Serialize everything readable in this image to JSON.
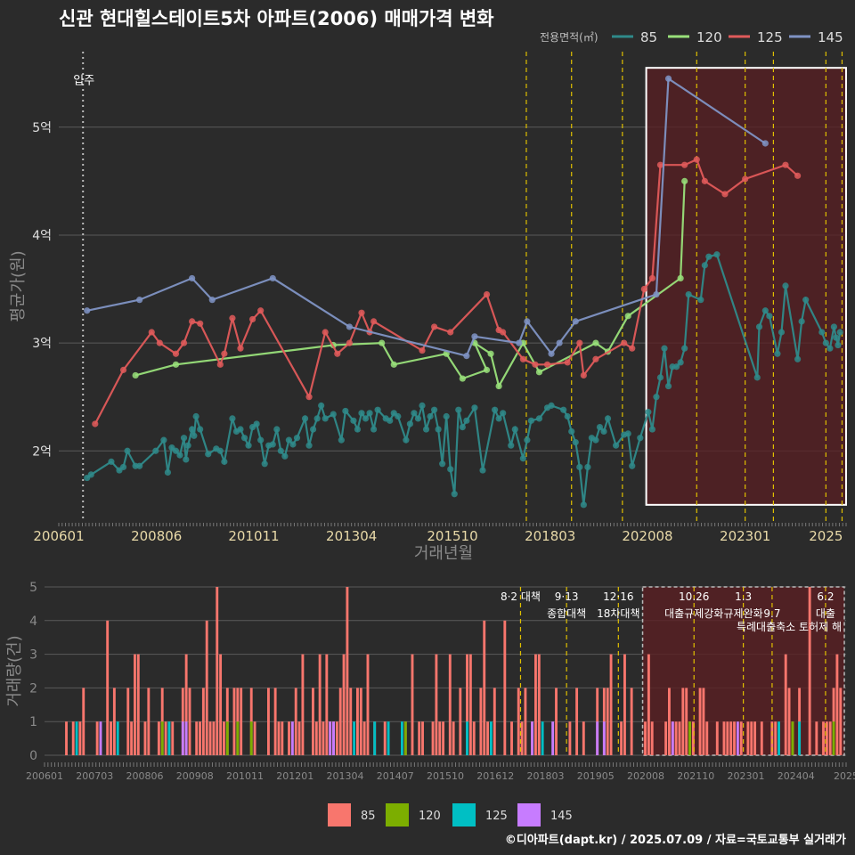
{
  "title": "신관 현대힐스테이트5차 아파트(2006) 매매가격 변화",
  "legend_title": "전용면적(㎡)",
  "copyright": "©디아파트(dapt.kr) / 2025.07.09 / 자료=국토교통부 실거래가",
  "colors": {
    "background": "#2b2b2b",
    "85": "#2f8a8a",
    "120": "#99e07a",
    "125": "#e05a5a",
    "145": "#7f93c4",
    "bar85": "#f8766d",
    "bar120": "#7cae00",
    "bar125": "#00bfc4",
    "bar145": "#c77cff",
    "policy_line": "#e0c000",
    "move_in_line": "#bbbbbb",
    "highlight_fill": "#5a1f23"
  },
  "chart_data": [
    {
      "type": "line",
      "name": "price",
      "xlabel": "거래년월",
      "ylabel": "평균가(원)",
      "x_range": [
        2006.0,
        2025.5
      ],
      "y_range": [
        1.35,
        5.7
      ],
      "y_ticks": [
        {
          "v": 2,
          "label": "2억"
        },
        {
          "v": 3,
          "label": "3억"
        },
        {
          "v": 4,
          "label": "4억"
        },
        {
          "v": 5,
          "label": "5억"
        }
      ],
      "x_ticks": [
        {
          "v": 2006.0,
          "label": "200601"
        },
        {
          "v": 2008.42,
          "label": "200806"
        },
        {
          "v": 2010.83,
          "label": "201011"
        },
        {
          "v": 2013.25,
          "label": "201304"
        },
        {
          "v": 2015.75,
          "label": "201510"
        },
        {
          "v": 2018.17,
          "label": "201803"
        },
        {
          "v": 2020.58,
          "label": "202008"
        },
        {
          "v": 2023.0,
          "label": "202301"
        },
        {
          "v": 2025.0,
          "label": "2025"
        }
      ],
      "move_in": {
        "x": 2006.6,
        "label": "입주"
      },
      "policy_lines": [
        2017.58,
        2018.7,
        2019.96,
        2021.8,
        2023.0,
        2023.7,
        2025.0,
        2025.4
      ],
      "highlight_box": {
        "x0": 2020.55,
        "x1": 2025.5,
        "y0": 1.5,
        "y1": 5.55
      },
      "series": [
        {
          "name": "85",
          "color_key": "85",
          "values": [
            [
              2006.7,
              1.75
            ],
            [
              2006.8,
              1.78
            ],
            [
              2007.3,
              1.9
            ],
            [
              2007.5,
              1.82
            ],
            [
              2007.6,
              1.85
            ],
            [
              2007.7,
              2.0
            ],
            [
              2007.9,
              1.86
            ],
            [
              2008.0,
              1.86
            ],
            [
              2008.4,
              2.0
            ],
            [
              2008.6,
              2.1
            ],
            [
              2008.7,
              1.8
            ],
            [
              2008.8,
              2.03
            ],
            [
              2008.9,
              2.0
            ],
            [
              2009.0,
              1.96
            ],
            [
              2009.1,
              2.12
            ],
            [
              2009.15,
              1.92
            ],
            [
              2009.2,
              2.05
            ],
            [
              2009.3,
              2.2
            ],
            [
              2009.35,
              2.14
            ],
            [
              2009.4,
              2.32
            ],
            [
              2009.5,
              2.2
            ],
            [
              2009.7,
              1.97
            ],
            [
              2009.9,
              2.02
            ],
            [
              2010.0,
              2.0
            ],
            [
              2010.1,
              1.9
            ],
            [
              2010.3,
              2.3
            ],
            [
              2010.4,
              2.18
            ],
            [
              2010.5,
              2.2
            ],
            [
              2010.6,
              2.12
            ],
            [
              2010.7,
              2.05
            ],
            [
              2010.8,
              2.22
            ],
            [
              2010.9,
              2.25
            ],
            [
              2011.0,
              2.1
            ],
            [
              2011.1,
              1.88
            ],
            [
              2011.2,
              2.05
            ],
            [
              2011.3,
              2.06
            ],
            [
              2011.4,
              2.2
            ],
            [
              2011.5,
              2.0
            ],
            [
              2011.6,
              1.95
            ],
            [
              2011.7,
              2.1
            ],
            [
              2011.8,
              2.06
            ],
            [
              2011.9,
              2.12
            ],
            [
              2012.1,
              2.3
            ],
            [
              2012.2,
              2.05
            ],
            [
              2012.3,
              2.2
            ],
            [
              2012.4,
              2.3
            ],
            [
              2012.5,
              2.42
            ],
            [
              2012.6,
              2.3
            ],
            [
              2012.8,
              2.34
            ],
            [
              2013.0,
              2.1
            ],
            [
              2013.1,
              2.37
            ],
            [
              2013.3,
              2.28
            ],
            [
              2013.4,
              2.2
            ],
            [
              2013.5,
              2.35
            ],
            [
              2013.6,
              2.3
            ],
            [
              2013.7,
              2.35
            ],
            [
              2013.8,
              2.2
            ],
            [
              2013.9,
              2.38
            ],
            [
              2014.1,
              2.3
            ],
            [
              2014.2,
              2.28
            ],
            [
              2014.3,
              2.35
            ],
            [
              2014.4,
              2.32
            ],
            [
              2014.6,
              2.1
            ],
            [
              2014.7,
              2.25
            ],
            [
              2014.8,
              2.35
            ],
            [
              2014.9,
              2.3
            ],
            [
              2015.0,
              2.42
            ],
            [
              2015.1,
              2.2
            ],
            [
              2015.2,
              2.32
            ],
            [
              2015.3,
              2.38
            ],
            [
              2015.4,
              2.2
            ],
            [
              2015.5,
              1.88
            ],
            [
              2015.6,
              2.32
            ],
            [
              2015.7,
              1.83
            ],
            [
              2015.8,
              1.6
            ],
            [
              2015.9,
              2.38
            ],
            [
              2016.0,
              2.22
            ],
            [
              2016.1,
              2.28
            ],
            [
              2016.3,
              2.4
            ],
            [
              2016.5,
              1.82
            ],
            [
              2016.8,
              2.38
            ],
            [
              2016.9,
              2.3
            ],
            [
              2017.0,
              2.35
            ],
            [
              2017.2,
              2.05
            ],
            [
              2017.3,
              2.2
            ],
            [
              2017.5,
              1.93
            ],
            [
              2017.6,
              2.1
            ],
            [
              2017.7,
              2.28
            ],
            [
              2017.9,
              2.3
            ],
            [
              2018.1,
              2.4
            ],
            [
              2018.2,
              2.42
            ],
            [
              2018.5,
              2.38
            ],
            [
              2018.6,
              2.32
            ],
            [
              2018.7,
              2.18
            ],
            [
              2018.8,
              2.08
            ],
            [
              2018.9,
              1.85
            ],
            [
              2019.0,
              1.5
            ],
            [
              2019.1,
              1.85
            ],
            [
              2019.2,
              2.12
            ],
            [
              2019.3,
              2.1
            ],
            [
              2019.4,
              2.22
            ],
            [
              2019.5,
              2.18
            ],
            [
              2019.6,
              2.3
            ],
            [
              2019.8,
              2.05
            ],
            [
              2020.0,
              2.15
            ],
            [
              2020.1,
              2.16
            ],
            [
              2020.2,
              1.86
            ],
            [
              2020.4,
              2.12
            ],
            [
              2020.6,
              2.36
            ],
            [
              2020.7,
              2.2
            ],
            [
              2020.8,
              2.5
            ],
            [
              2020.9,
              2.68
            ],
            [
              2021.0,
              2.95
            ],
            [
              2021.1,
              2.6
            ],
            [
              2021.2,
              2.78
            ],
            [
              2021.3,
              2.78
            ],
            [
              2021.4,
              2.82
            ],
            [
              2021.5,
              2.95
            ],
            [
              2021.6,
              3.45
            ],
            [
              2021.9,
              3.4
            ],
            [
              2022.0,
              3.72
            ],
            [
              2022.1,
              3.8
            ],
            [
              2022.3,
              3.82
            ],
            [
              2023.3,
              2.68
            ],
            [
              2023.35,
              3.15
            ],
            [
              2023.5,
              3.3
            ],
            [
              2023.6,
              3.25
            ],
            [
              2023.8,
              2.9
            ],
            [
              2023.9,
              3.1
            ],
            [
              2024.0,
              3.53
            ],
            [
              2024.3,
              2.85
            ],
            [
              2024.4,
              3.2
            ],
            [
              2024.5,
              3.4
            ],
            [
              2024.9,
              3.1
            ],
            [
              2025.0,
              3.0
            ],
            [
              2025.1,
              2.95
            ],
            [
              2025.2,
              3.15
            ],
            [
              2025.25,
              3.05
            ],
            [
              2025.3,
              2.98
            ],
            [
              2025.35,
              3.1
            ]
          ]
        },
        {
          "name": "120",
          "color_key": "120",
          "values": [
            [
              2007.9,
              2.7
            ],
            [
              2008.9,
              2.8
            ],
            [
              2012.8,
              2.98
            ],
            [
              2014.0,
              3.0
            ],
            [
              2014.3,
              2.8
            ],
            [
              2015.6,
              2.9
            ],
            [
              2016.0,
              2.67
            ],
            [
              2016.6,
              2.75
            ],
            [
              2016.3,
              3.0
            ],
            [
              2016.7,
              2.9
            ],
            [
              2016.9,
              2.6
            ],
            [
              2017.5,
              3.0
            ],
            [
              2017.9,
              2.73
            ],
            [
              2019.3,
              3.0
            ],
            [
              2019.6,
              2.92
            ],
            [
              2020.1,
              3.25
            ],
            [
              2021.4,
              3.6
            ],
            [
              2021.5,
              4.5
            ]
          ]
        },
        {
          "name": "125",
          "color_key": "125",
          "values": [
            [
              2006.9,
              2.25
            ],
            [
              2007.6,
              2.75
            ],
            [
              2008.3,
              3.1
            ],
            [
              2008.5,
              3.0
            ],
            [
              2008.9,
              2.9
            ],
            [
              2009.1,
              3.0
            ],
            [
              2009.3,
              3.2
            ],
            [
              2009.5,
              3.18
            ],
            [
              2010.0,
              2.8
            ],
            [
              2010.1,
              2.9
            ],
            [
              2010.3,
              3.23
            ],
            [
              2010.5,
              2.95
            ],
            [
              2010.8,
              3.22
            ],
            [
              2011.0,
              3.3
            ],
            [
              2012.2,
              2.5
            ],
            [
              2012.6,
              3.1
            ],
            [
              2012.9,
              2.9
            ],
            [
              2013.2,
              3.0
            ],
            [
              2013.5,
              3.28
            ],
            [
              2013.7,
              3.1
            ],
            [
              2013.8,
              3.2
            ],
            [
              2015.0,
              2.93
            ],
            [
              2015.3,
              3.15
            ],
            [
              2015.7,
              3.1
            ],
            [
              2016.6,
              3.45
            ],
            [
              2016.9,
              3.12
            ],
            [
              2017.0,
              3.1
            ],
            [
              2017.5,
              2.85
            ],
            [
              2017.8,
              2.8
            ],
            [
              2018.1,
              2.8
            ],
            [
              2018.6,
              2.82
            ],
            [
              2018.9,
              3.0
            ],
            [
              2019.0,
              2.7
            ],
            [
              2019.3,
              2.85
            ],
            [
              2020.0,
              3.0
            ],
            [
              2020.2,
              2.95
            ],
            [
              2020.5,
              3.5
            ],
            [
              2020.7,
              3.6
            ],
            [
              2020.9,
              4.65
            ],
            [
              2021.5,
              4.65
            ],
            [
              2021.8,
              4.7
            ],
            [
              2022.0,
              4.5
            ],
            [
              2022.5,
              4.38
            ],
            [
              2023.0,
              4.52
            ],
            [
              2024.0,
              4.65
            ],
            [
              2024.3,
              4.55
            ]
          ]
        },
        {
          "name": "145",
          "color_key": "145",
          "values": [
            [
              2006.7,
              3.3
            ],
            [
              2008.0,
              3.4
            ],
            [
              2009.3,
              3.6
            ],
            [
              2009.8,
              3.4
            ],
            [
              2011.3,
              3.6
            ],
            [
              2013.2,
              3.15
            ],
            [
              2016.1,
              2.88
            ],
            [
              2016.3,
              3.06
            ],
            [
              2017.4,
              3.0
            ],
            [
              2017.6,
              3.2
            ],
            [
              2018.2,
              2.9
            ],
            [
              2018.4,
              3.0
            ],
            [
              2018.8,
              3.2
            ],
            [
              2020.8,
              3.45
            ],
            [
              2021.1,
              5.45
            ],
            [
              2023.5,
              4.85
            ]
          ]
        }
      ]
    },
    {
      "type": "bar",
      "name": "volume",
      "xlabel": "",
      "ylabel": "거래량(건)",
      "y_range": [
        0,
        5
      ],
      "y_ticks": [
        0,
        1,
        2,
        3,
        4,
        5
      ],
      "x_ticks": [
        "200601",
        "200703",
        "200806",
        "200908",
        "201011",
        "201201",
        "201304",
        "201407",
        "201510",
        "201612",
        "201803",
        "201905",
        "202008",
        "202110",
        "202301",
        "202404",
        "2025"
      ],
      "annotations": [
        {
          "x": 2017.58,
          "line1": "8·2 대책",
          "line2": ""
        },
        {
          "x": 2018.7,
          "line1": "9·13",
          "line2": "종합대책"
        },
        {
          "x": 2019.96,
          "line1": "12·16",
          "line2": "18차대책"
        },
        {
          "x": 2021.8,
          "line1": "10.26",
          "line2": "대출규제강화"
        },
        {
          "x": 2023.0,
          "line1": "1.3",
          "line2": "규제완화"
        },
        {
          "x": 2023.7,
          "line1": "",
          "line2": "9.7"
        },
        {
          "x": 2025.0,
          "line1": "6.2",
          "line2": "대출"
        }
      ],
      "annotation_extra": "특례대출축소 토허제 해",
      "legend": [
        {
          "label": "85",
          "color_key": "bar85"
        },
        {
          "label": "120",
          "color_key": "bar120"
        },
        {
          "label": "125",
          "color_key": "bar125"
        },
        {
          "label": "145",
          "color_key": "bar145"
        }
      ]
    }
  ]
}
